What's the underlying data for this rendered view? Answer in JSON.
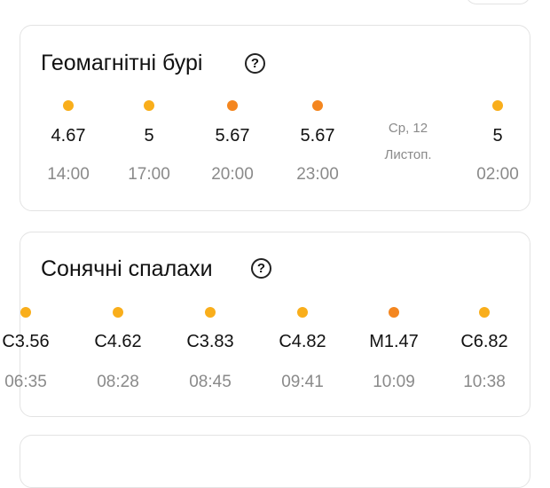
{
  "colors": {
    "yellow": "#F9AE1B",
    "orange": "#F4861F"
  },
  "geomagnetic": {
    "title": "Геомагнітні бурі",
    "help_icon": "question-circle-icon",
    "items": [
      {
        "value": "4.67",
        "time": "14:00",
        "level": "yellow"
      },
      {
        "value": "5",
        "time": "17:00",
        "level": "yellow"
      },
      {
        "value": "5.67",
        "time": "20:00",
        "level": "orange"
      },
      {
        "value": "5.67",
        "time": "23:00",
        "level": "orange"
      },
      {
        "date_line1": "Ср, 12",
        "date_line2": "Листоп."
      },
      {
        "value": "5",
        "time": "02:00",
        "level": "yellow"
      }
    ]
  },
  "solar": {
    "title": "Сонячні спалахи",
    "help_icon": "question-circle-icon",
    "items": [
      {
        "value": "C3.56",
        "time": "06:35",
        "level": "yellow"
      },
      {
        "value": "C4.62",
        "time": "08:28",
        "level": "yellow"
      },
      {
        "value": "C3.83",
        "time": "08:45",
        "level": "yellow"
      },
      {
        "value": "C4.82",
        "time": "09:41",
        "level": "yellow"
      },
      {
        "value": "M1.47",
        "time": "10:09",
        "level": "orange"
      },
      {
        "value": "C6.82",
        "time": "10:38",
        "level": "yellow"
      }
    ]
  }
}
